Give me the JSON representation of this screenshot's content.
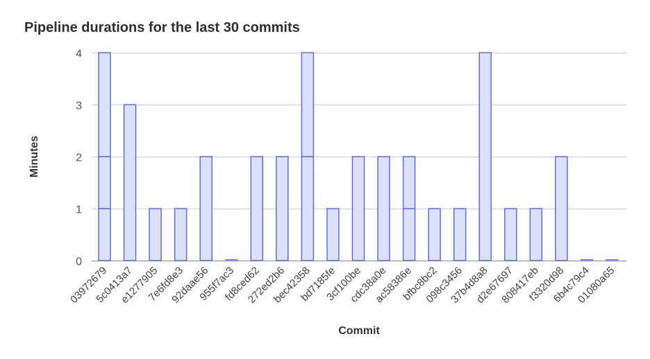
{
  "chart_data": {
    "type": "bar",
    "stacked": true,
    "title": "Pipeline durations for the last 30 commits",
    "xlabel": "Commit",
    "ylabel": "Minutes",
    "ylim": [
      0,
      4
    ],
    "yticks": [
      0,
      1,
      2,
      3,
      4
    ],
    "grid": true,
    "colors": {
      "fill": "#dde0fa",
      "stroke": "#5a6ee6",
      "grid": "#cccccc",
      "axis": "#888888"
    },
    "categories": [
      "03972679",
      "5c0413a7",
      "e1277905",
      "7e6fd8e3",
      "92daae56",
      "955f7ac3",
      "fd8ced62",
      "272ed2b6",
      "bec42358",
      "bd7185fe",
      "3cf100be",
      "cdc38a0e",
      "ac58386e",
      "bfbc8bc2",
      "098c3456",
      "37b4d8a8",
      "d2e67697",
      "808417eb",
      "f3320d98",
      "6b4c79c4",
      "01080a65"
    ],
    "segments": [
      [
        1,
        1,
        2
      ],
      [
        3
      ],
      [
        1
      ],
      [
        1
      ],
      [
        2
      ],
      [
        0
      ],
      [
        2
      ],
      [
        2
      ],
      [
        2,
        2
      ],
      [
        1
      ],
      [
        2
      ],
      [
        2
      ],
      [
        1,
        1
      ],
      [
        1
      ],
      [
        1
      ],
      [
        4
      ],
      [
        1
      ],
      [
        1
      ],
      [
        2
      ],
      [
        0
      ],
      [
        0
      ]
    ]
  }
}
